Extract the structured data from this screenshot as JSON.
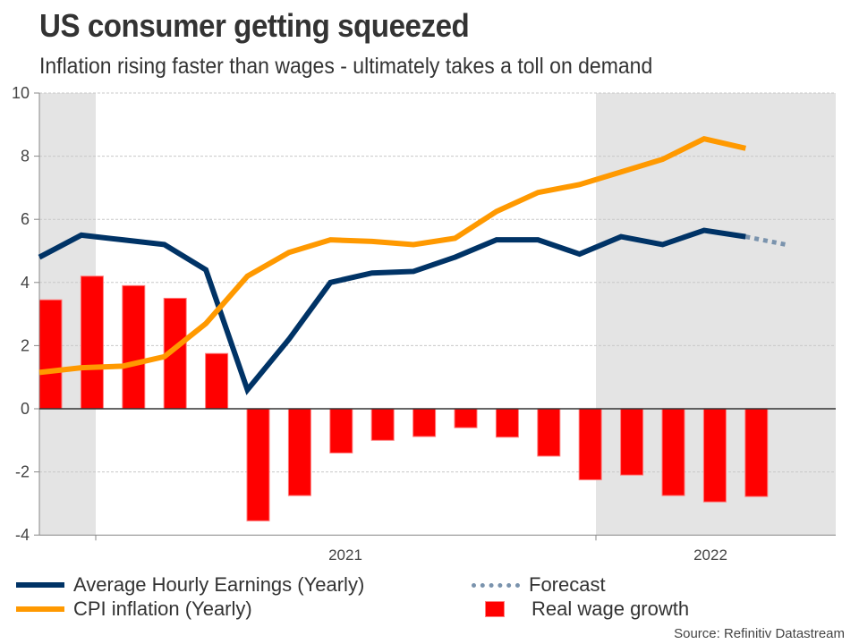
{
  "chart_data": {
    "type": "bar+line",
    "title": "US consumer getting squeezed",
    "subtitle": "Inflation rising faster than wages - ultimately takes a toll on demand",
    "xlabel": "",
    "ylabel": "",
    "ylim": [
      -4,
      10
    ],
    "yticks": [
      -4,
      -2,
      0,
      2,
      4,
      6,
      8,
      10
    ],
    "grid": true,
    "x_tick_labels": [
      "2021",
      "2022"
    ],
    "shaded_regions_index": [
      [
        0,
        1.35
      ],
      [
        14.85,
        20
      ]
    ],
    "period_count": 19,
    "series": [
      {
        "name": "Average Hourly Earnings (Yearly)",
        "kind": "line",
        "color": "#003366",
        "values": [
          4.8,
          5.5,
          5.35,
          5.2,
          4.4,
          0.6,
          2.2,
          4.0,
          4.3,
          4.35,
          4.8,
          5.35,
          5.35,
          4.9,
          5.45,
          5.2,
          5.65,
          5.45
        ]
      },
      {
        "name": "CPI inflation (Yearly)",
        "kind": "line",
        "color": "#ff9900",
        "values": [
          1.15,
          1.3,
          1.35,
          1.65,
          2.7,
          4.2,
          4.95,
          5.35,
          5.3,
          5.2,
          5.4,
          6.25,
          6.85,
          7.1,
          7.5,
          7.9,
          8.55,
          8.25
        ]
      },
      {
        "name": "Forecast",
        "kind": "dotted-line",
        "color": "#7a93ad",
        "start_index": 17,
        "values": [
          5.45,
          5.2
        ]
      },
      {
        "name": "Real wage growth",
        "kind": "bar",
        "color": "#ff0000",
        "values": [
          3.45,
          4.2,
          3.9,
          3.5,
          1.75,
          -3.55,
          -2.75,
          -1.4,
          -1.0,
          -0.88,
          -0.6,
          -0.9,
          -1.5,
          -2.25,
          -2.1,
          -2.75,
          -2.95,
          -2.78
        ]
      }
    ],
    "legend": [
      {
        "label": "Average Hourly Earnings (Yearly)",
        "style": "line",
        "color": "#003366"
      },
      {
        "label": "CPI inflation (Yearly)",
        "style": "line",
        "color": "#ff9900"
      },
      {
        "label": "Forecast",
        "style": "dotted",
        "color": "#7a93ad"
      },
      {
        "label": "Real wage growth",
        "style": "box",
        "color": "#ff0000"
      }
    ],
    "legend_placement": "bottom",
    "source": "Source: Refinitiv Datastream"
  }
}
